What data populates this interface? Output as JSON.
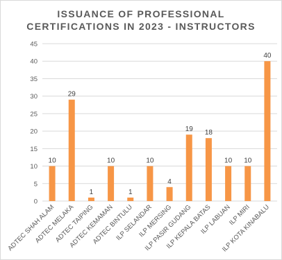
{
  "chart_data": {
    "type": "bar",
    "title_lines": [
      "ISSUANCE OF PROFESSIONAL",
      "CERTIFICATIONS IN 2023 - INSTRUCTORS"
    ],
    "categories": [
      "ADTEC SHAH ALAM",
      "ADTEC MELAKA",
      "ADTEC TAIPING",
      "ADTEC KEMAMAN",
      "ADTEC BINTULU",
      "ILP SELANDAR",
      "ILP MERSING",
      "ILP PASIR GUDANG",
      "ILP KEPALA BATAS",
      "ILP LABUAN",
      "ILP MIRI",
      "ILP KOTA KINABALU"
    ],
    "values": [
      10,
      29,
      1,
      10,
      1,
      10,
      4,
      19,
      18,
      10,
      10,
      40
    ],
    "ylim": [
      0,
      45
    ],
    "yticks": [
      0,
      5,
      10,
      15,
      20,
      25,
      30,
      35,
      40,
      45
    ],
    "grid": true,
    "legend": "none",
    "bar_color": "#F79646",
    "grid_color": "#D9D9D9",
    "text_color": "#595959"
  }
}
